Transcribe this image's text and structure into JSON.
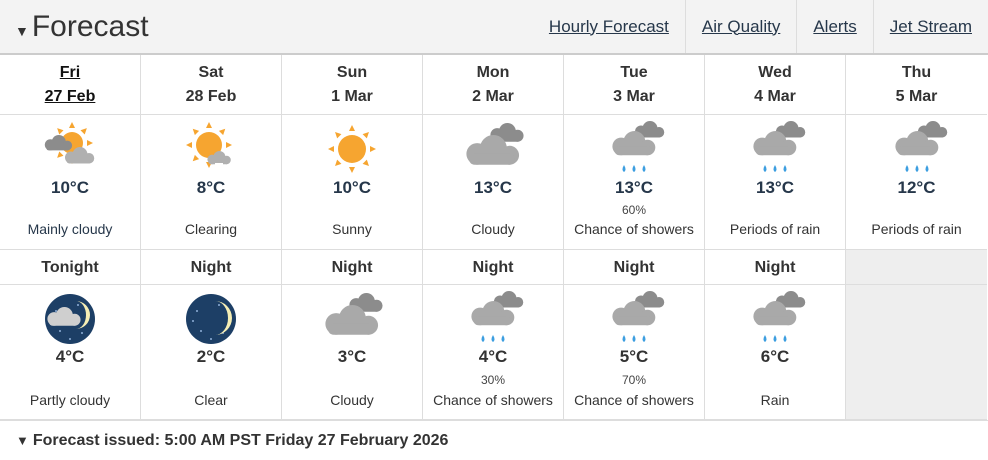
{
  "header": {
    "title": "Forecast",
    "links": [
      "Hourly Forecast",
      "Air Quality",
      "Alerts",
      "Jet Stream"
    ]
  },
  "days": [
    {
      "day": "Fri",
      "date": "27 Feb",
      "icon": "sun-cloud",
      "temp": "10°C",
      "pop": "",
      "desc": "Mainly cloudy",
      "current": true
    },
    {
      "day": "Sat",
      "date": "28 Feb",
      "icon": "sun-clearing",
      "temp": "8°C",
      "pop": "",
      "desc": "Clearing"
    },
    {
      "day": "Sun",
      "date": "1 Mar",
      "icon": "sun",
      "temp": "10°C",
      "pop": "",
      "desc": "Sunny"
    },
    {
      "day": "Mon",
      "date": "2 Mar",
      "icon": "cloud",
      "temp": "13°C",
      "pop": "",
      "desc": "Cloudy"
    },
    {
      "day": "Tue",
      "date": "3 Mar",
      "icon": "rain",
      "temp": "13°C",
      "pop": "60%",
      "desc": "Chance of showers"
    },
    {
      "day": "Wed",
      "date": "4 Mar",
      "icon": "rain",
      "temp": "13°C",
      "pop": "",
      "desc": "Periods of rain"
    },
    {
      "day": "Thu",
      "date": "5 Mar",
      "icon": "rain",
      "temp": "12°C",
      "pop": "",
      "desc": "Periods of rain"
    }
  ],
  "nights": [
    {
      "label": "Tonight",
      "icon": "moon-cloud",
      "temp": "4°C",
      "pop": "",
      "desc": "Partly cloudy"
    },
    {
      "label": "Night",
      "icon": "moon",
      "temp": "2°C",
      "pop": "",
      "desc": "Clear"
    },
    {
      "label": "Night",
      "icon": "cloud",
      "temp": "3°C",
      "pop": "",
      "desc": "Cloudy"
    },
    {
      "label": "Night",
      "icon": "rain",
      "temp": "4°C",
      "pop": "30%",
      "desc": "Chance of showers"
    },
    {
      "label": "Night",
      "icon": "rain",
      "temp": "5°C",
      "pop": "70%",
      "desc": "Chance of showers"
    },
    {
      "label": "Night",
      "icon": "rain",
      "temp": "6°C",
      "pop": "",
      "desc": "Rain"
    }
  ],
  "footer": {
    "issued": "Forecast issued: 5:00 AM PST Friday 27 February 2026"
  },
  "colors": {
    "link": "#26374a",
    "sun": "#f6a530",
    "cloud": "#a9a9a9",
    "rain": "#3c9ee0",
    "night": "#1d3f66"
  }
}
